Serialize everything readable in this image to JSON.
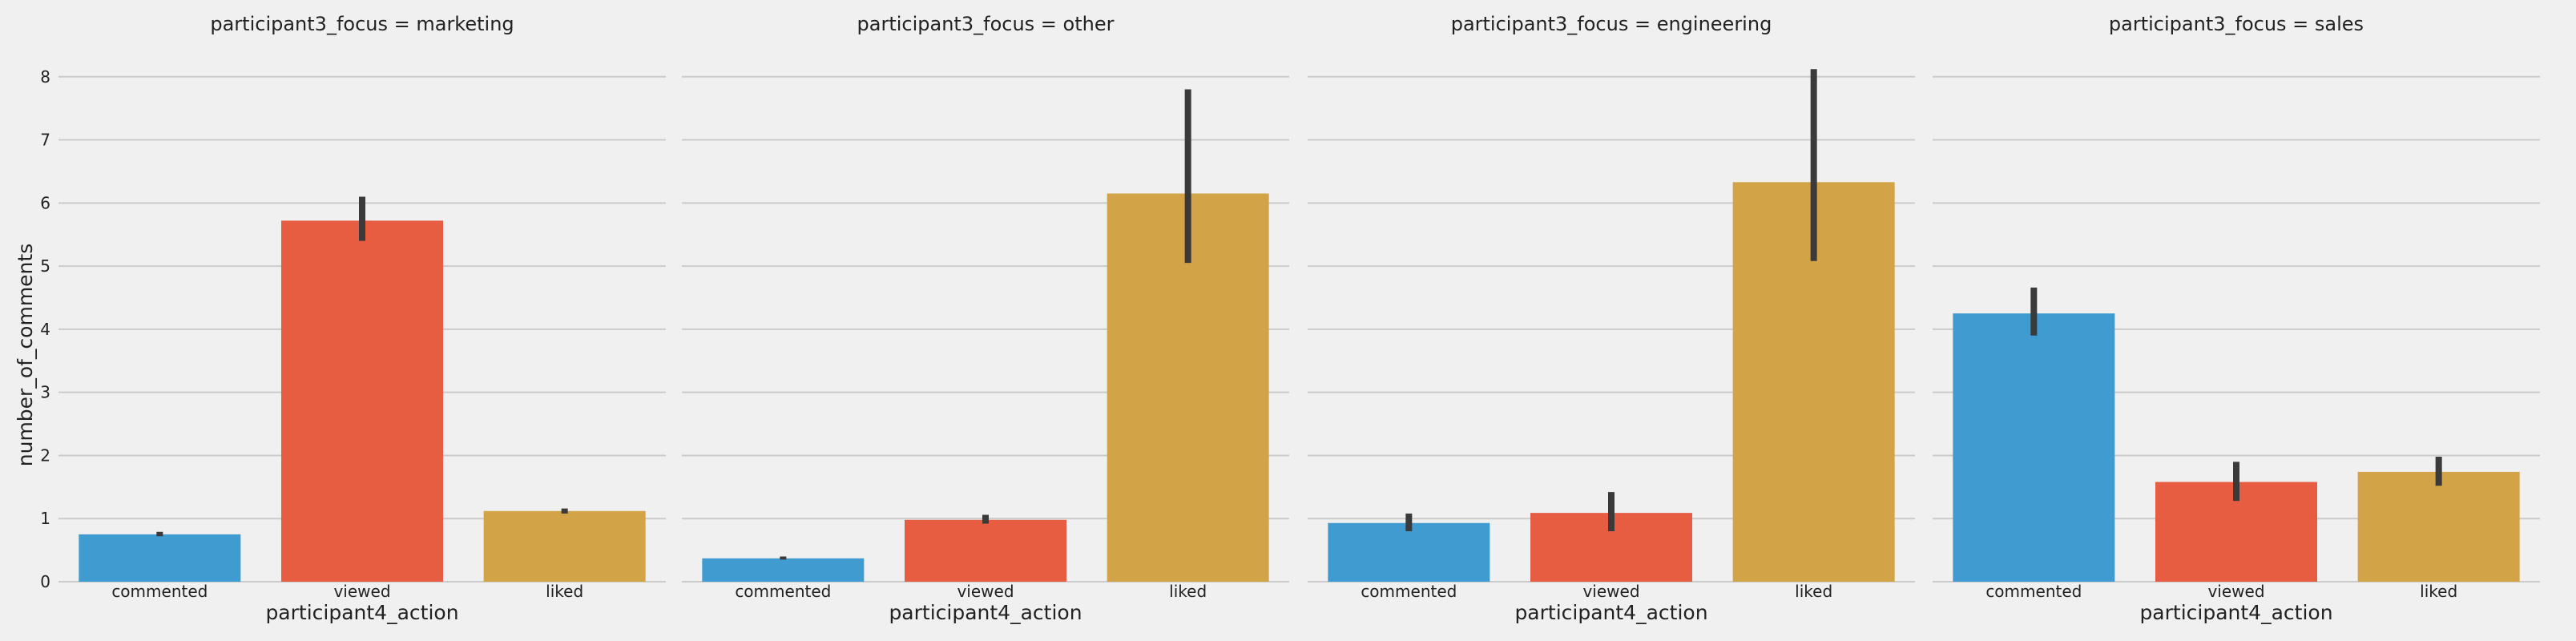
{
  "chart_data": {
    "type": "bar",
    "facet_variable": "participant3_focus",
    "xlabel": "participant4_action",
    "ylabel": "number_of_comments",
    "categories": [
      "commented",
      "viewed",
      "liked"
    ],
    "category_colors": [
      "#3f9bd0",
      "#e65d42",
      "#d2a447"
    ],
    "error_bar_color": "#3a3a3a",
    "ylim": [
      0,
      8.2
    ],
    "yticks": [
      "0",
      "1",
      "2",
      "3",
      "4",
      "5",
      "6",
      "7",
      "8"
    ],
    "grid": "horizontal",
    "panels": [
      {
        "title": "participant3_focus = marketing",
        "values": [
          0.75,
          5.72,
          1.12
        ],
        "error_low": [
          0.72,
          5.4,
          1.08
        ],
        "error_high": [
          0.79,
          6.1,
          1.16
        ]
      },
      {
        "title": "participant3_focus = other",
        "values": [
          0.37,
          0.98,
          6.15
        ],
        "error_low": [
          0.35,
          0.92,
          5.05
        ],
        "error_high": [
          0.4,
          1.06,
          7.8
        ]
      },
      {
        "title": "participant3_focus = engineering",
        "values": [
          0.93,
          1.09,
          6.33
        ],
        "error_low": [
          0.8,
          0.8,
          5.08
        ],
        "error_high": [
          1.08,
          1.42,
          8.12
        ]
      },
      {
        "title": "participant3_focus = sales",
        "values": [
          4.25,
          1.58,
          1.74
        ],
        "error_low": [
          3.9,
          1.28,
          1.52
        ],
        "error_high": [
          4.66,
          1.9,
          1.98
        ]
      }
    ]
  }
}
